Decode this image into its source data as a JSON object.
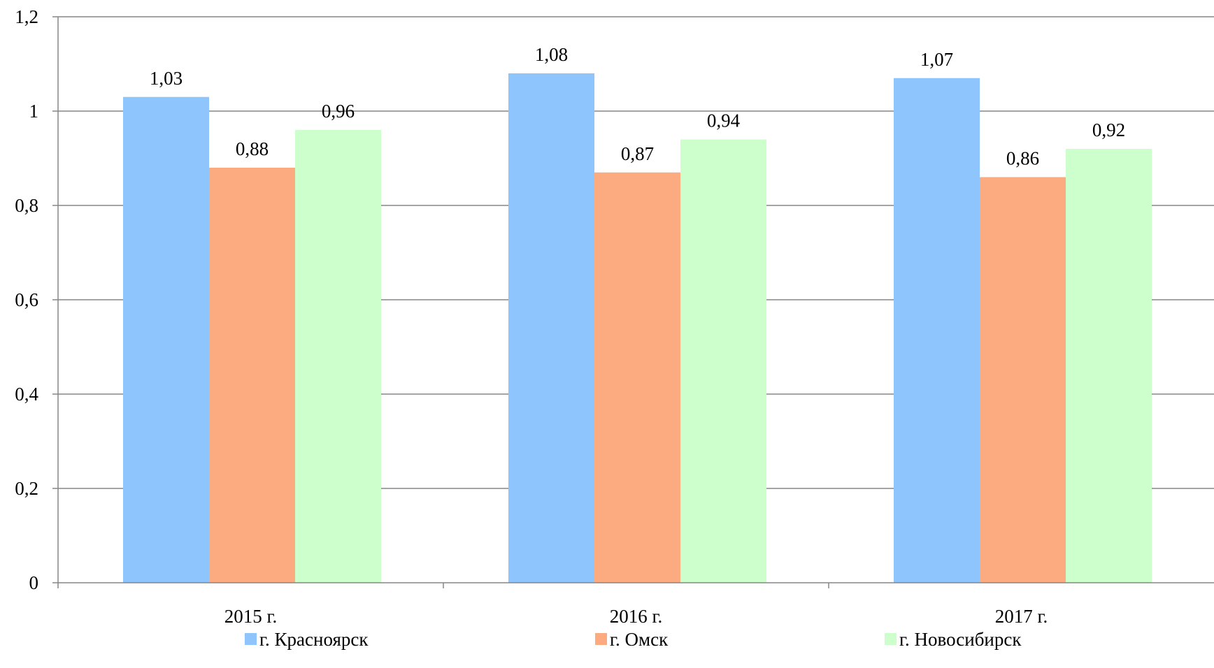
{
  "chart_data": {
    "type": "bar",
    "categories": [
      "2015 г.",
      "2016 г.",
      "2017 г."
    ],
    "series": [
      {
        "name": "г. Красноярск",
        "values": [
          1.03,
          1.08,
          1.07
        ],
        "value_labels": [
          "1,03",
          "1,08",
          "1,07"
        ],
        "color": "#8EC5FC"
      },
      {
        "name": "г. Омск",
        "values": [
          0.88,
          0.87,
          0.86
        ],
        "value_labels": [
          "0,88",
          "0,87",
          "0,86"
        ],
        "color": "#FCAA80"
      },
      {
        "name": "г. Новосибирск",
        "values": [
          0.96,
          0.94,
          0.92
        ],
        "value_labels": [
          "0,96",
          "0,94",
          "0,92"
        ],
        "color": "#CCFFCC"
      }
    ],
    "ylim": [
      0,
      1.2
    ],
    "yticks": [
      0,
      0.2,
      0.4,
      0.6,
      0.8,
      1,
      1.2
    ],
    "ytick_labels": [
      "0",
      "0,2",
      "0,4",
      "0,6",
      "0,8",
      "1",
      "1,2"
    ],
    "grid": true,
    "legend": "bottom"
  }
}
